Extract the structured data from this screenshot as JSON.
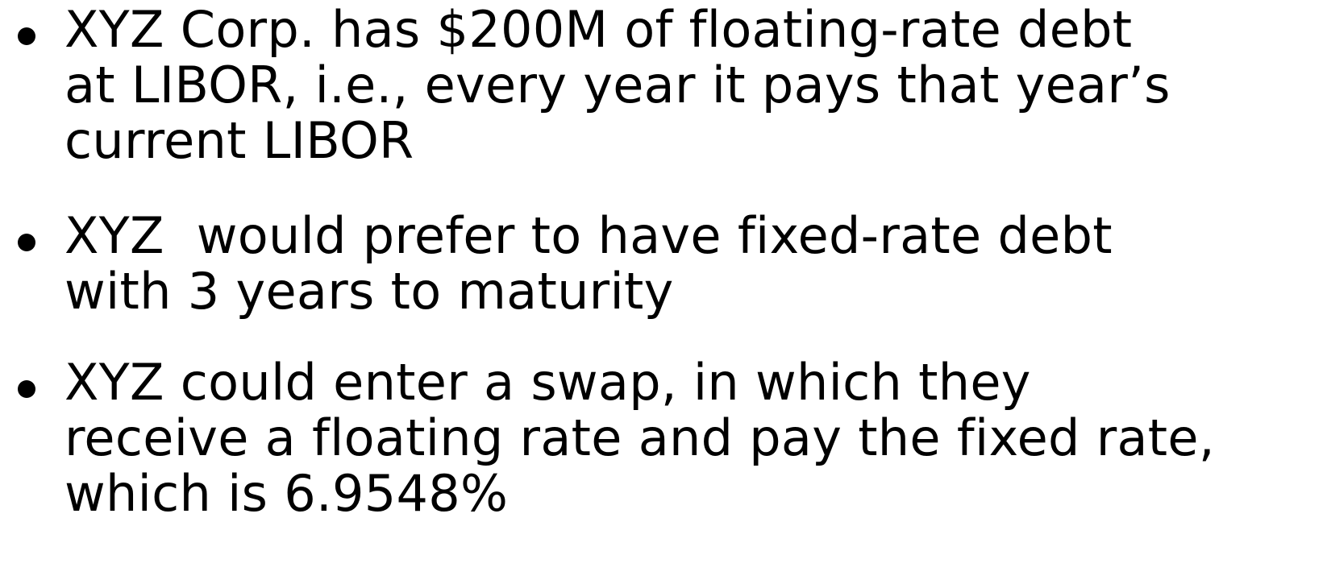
{
  "bullets": [
    {
      "lines": [
        "XYZ Corp. has $200M of floating-rate debt",
        "at LIBOR, i.e., every year it pays that year’s",
        "current LIBOR"
      ]
    },
    {
      "lines": [
        "XYZ  would prefer to have fixed-rate debt",
        "with 3 years to maturity"
      ]
    },
    {
      "lines": [
        "XYZ could enter a swap, in which they",
        "receive a floating rate and pay the fixed rate,",
        "which is 6.9548%"
      ]
    }
  ]
}
